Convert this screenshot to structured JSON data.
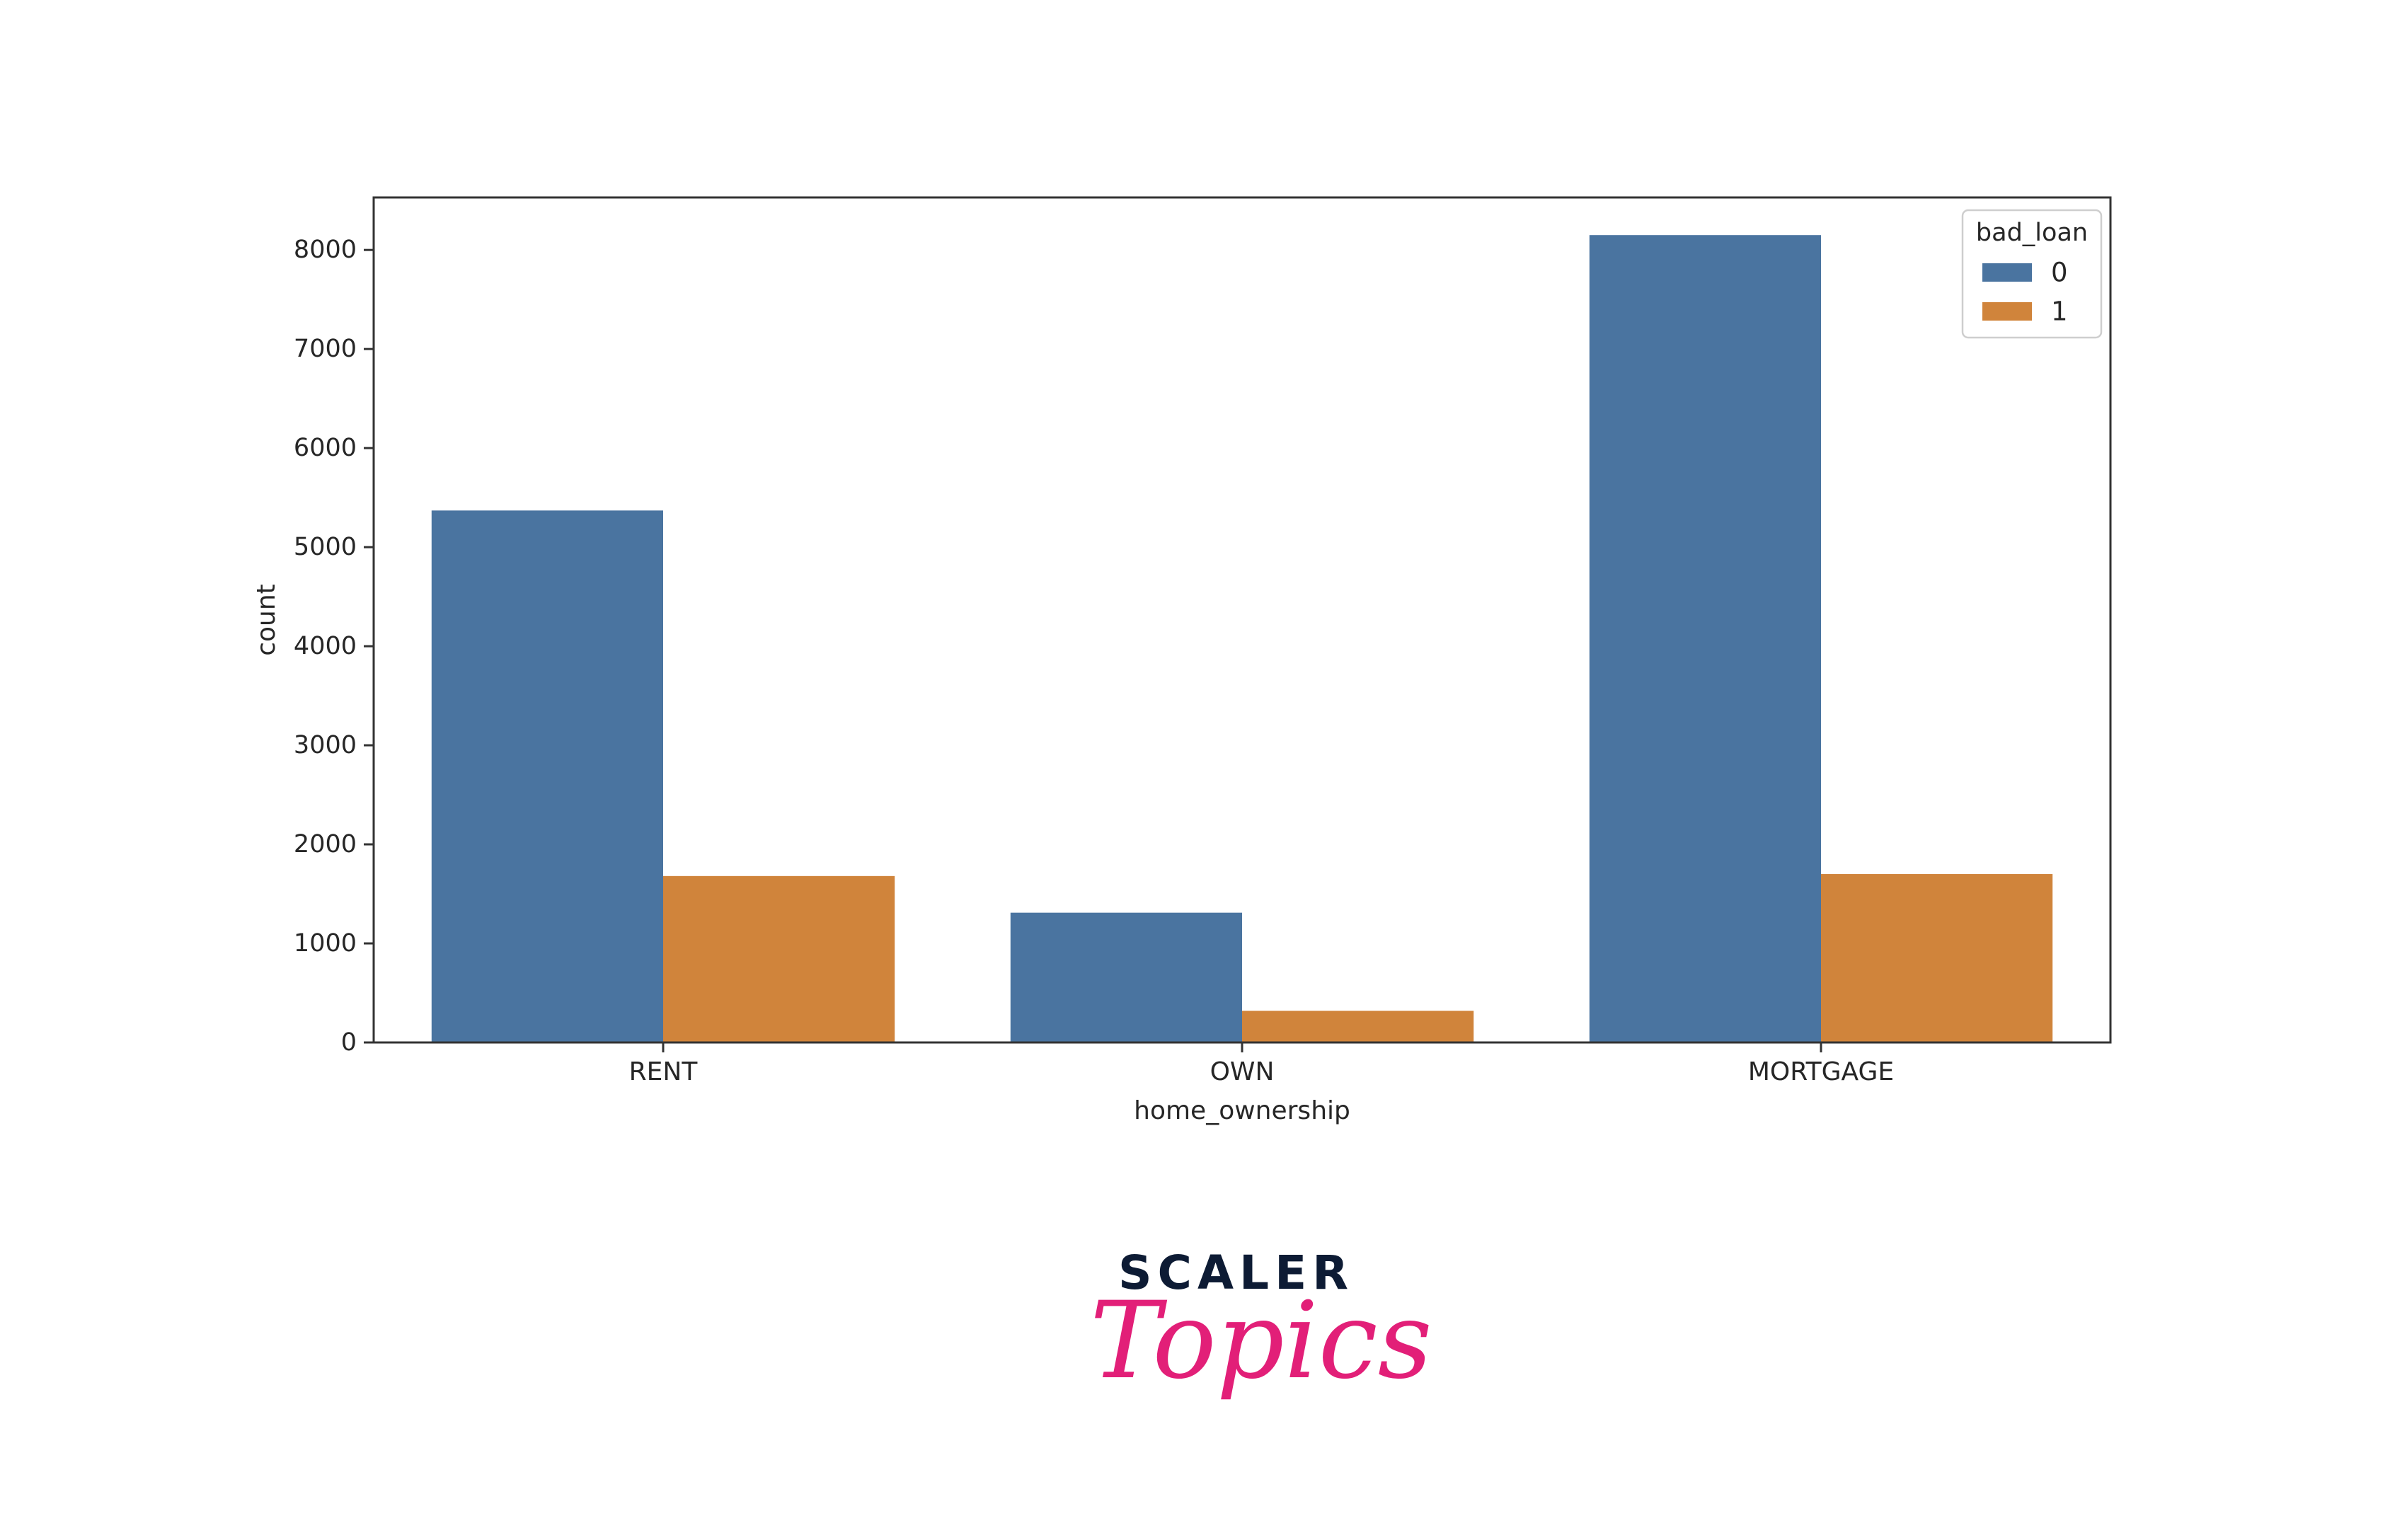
{
  "chart_data": {
    "type": "bar",
    "categories": [
      "RENT",
      "OWN",
      "MORTGAGE"
    ],
    "series": [
      {
        "name": "0",
        "values": [
          5370,
          1310,
          8150
        ]
      },
      {
        "name": "1",
        "values": [
          1680,
          320,
          1700
        ]
      }
    ],
    "title": "",
    "xlabel": "home_ownership",
    "ylabel": "count",
    "yticks": [
      0,
      1000,
      2000,
      3000,
      4000,
      5000,
      6000,
      7000,
      8000
    ],
    "ylim": [
      0,
      8530
    ],
    "legend_title": "bad_loan",
    "legend_position": "top-right",
    "grid": false,
    "colors": [
      "#4a74a0",
      "#d0843b"
    ]
  },
  "branding": {
    "word": "SCALER",
    "script": "Topics"
  }
}
